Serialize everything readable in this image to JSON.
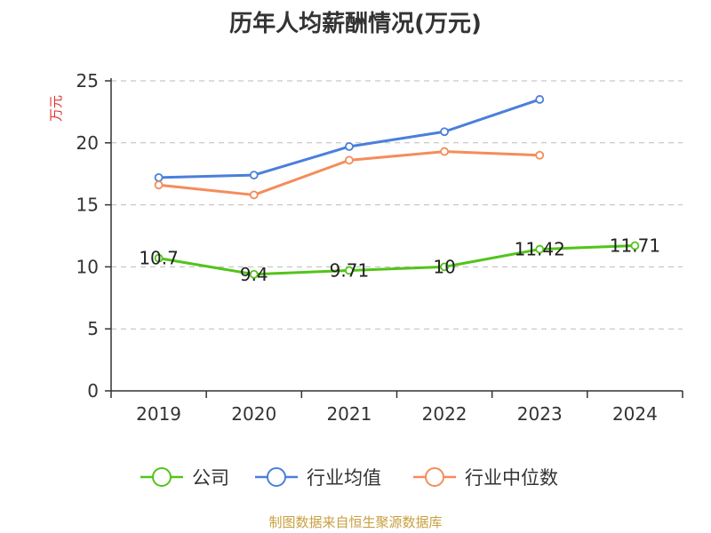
{
  "chart_data": {
    "type": "line",
    "title": "历年人均薪酬情况(万元)",
    "ylabel": "万元",
    "ylim": [
      0,
      25
    ],
    "yticks": [
      0,
      5,
      10,
      15,
      20,
      25
    ],
    "categories": [
      "2019",
      "2020",
      "2021",
      "2022",
      "2023",
      "2024"
    ],
    "grid": true,
    "legend_position": "bottom",
    "series": [
      {
        "name": "公司",
        "color": "#52c41a",
        "values": [
          10.7,
          9.4,
          9.71,
          10,
          11.42,
          11.71
        ],
        "labels": [
          "10.7",
          "9.4",
          "9.71",
          "10",
          "11.42",
          "11.71"
        ]
      },
      {
        "name": "行业均值",
        "color": "#4a7fdb",
        "values": [
          17.2,
          17.4,
          19.7,
          20.9,
          23.5,
          null
        ]
      },
      {
        "name": "行业中位数",
        "color": "#f58c5a",
        "values": [
          16.6,
          15.8,
          18.6,
          19.3,
          19.0,
          null
        ]
      }
    ]
  },
  "source": "制图数据来自恒生聚源数据库",
  "ylabel_color": "#e03030"
}
